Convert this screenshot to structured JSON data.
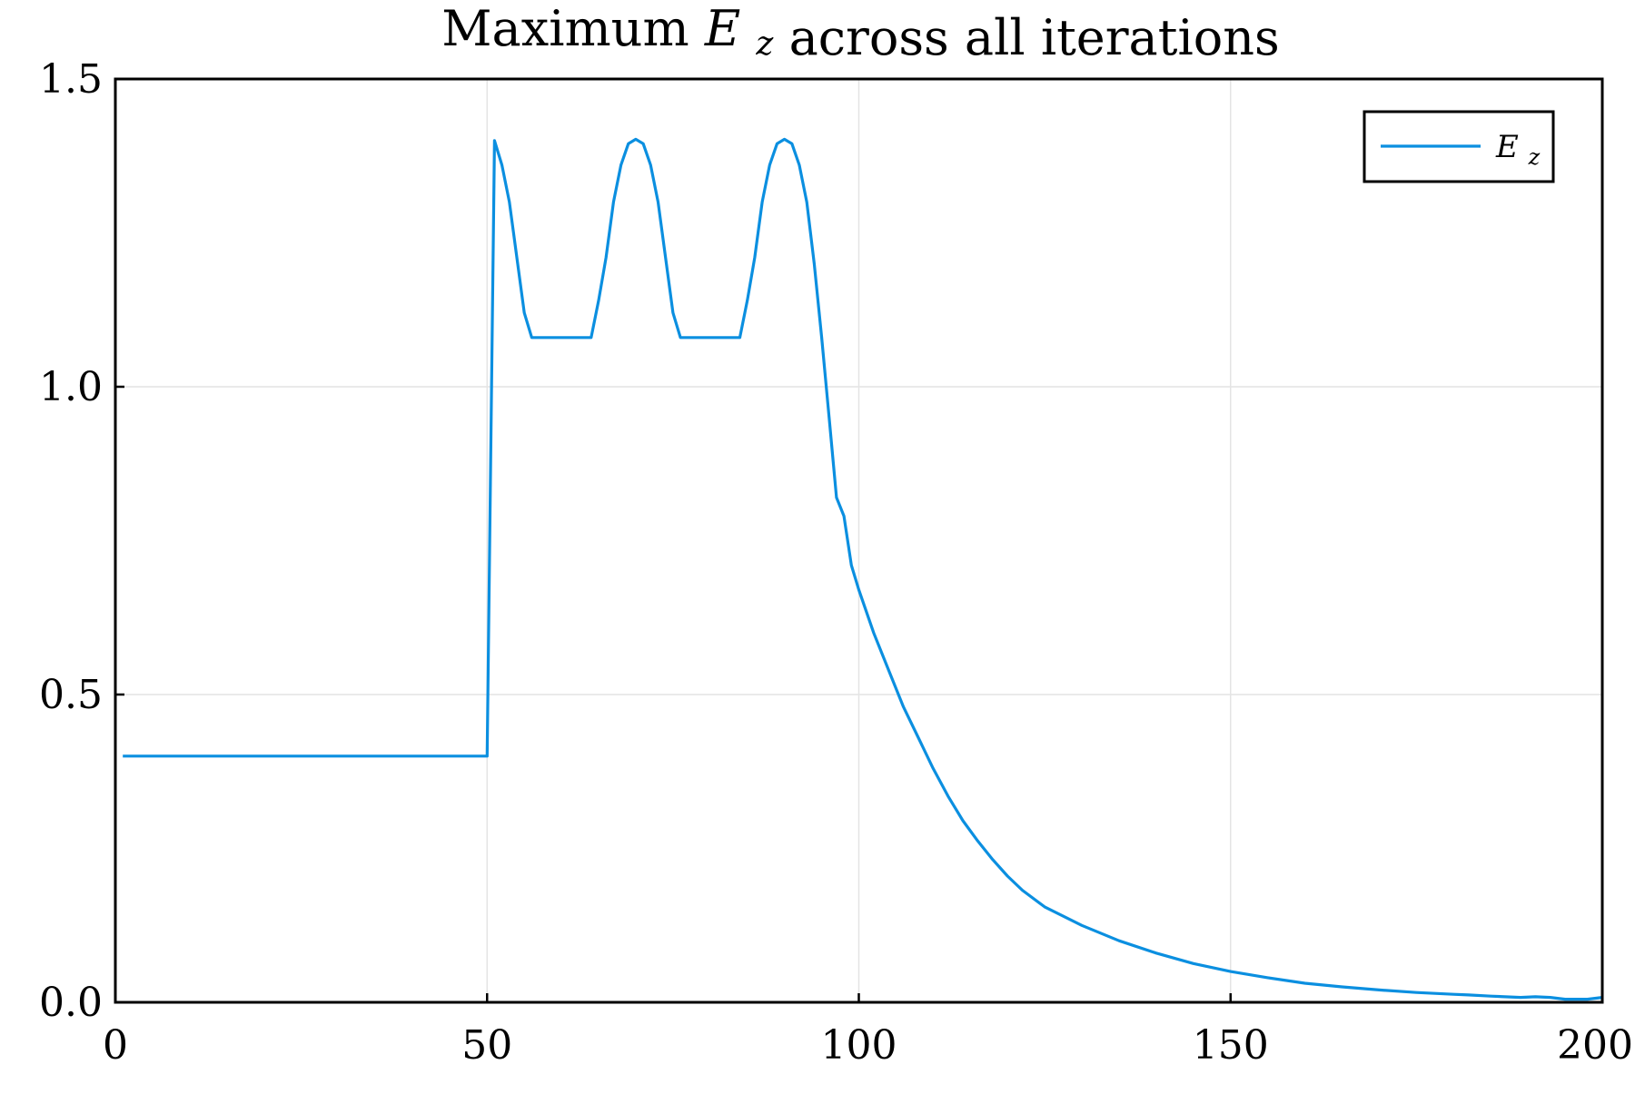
{
  "chart_data": {
    "type": "line",
    "title": "Maximum E_z across all iterations",
    "title_parts": {
      "prefix": "Maximum",
      "symbol": "E",
      "subscript": "z",
      "suffix": "across all iterations"
    },
    "xlabel": "",
    "ylabel": "",
    "xlim": [
      0,
      200
    ],
    "ylim": [
      0,
      1.5
    ],
    "xticks": [
      0,
      50,
      100,
      150,
      200
    ],
    "xtick_labels": [
      "0",
      "50",
      "100",
      "150",
      "200"
    ],
    "yticks": [
      0,
      0.5,
      1.0,
      1.5
    ],
    "ytick_labels": [
      "0.0",
      "0.5",
      "1.0",
      "1.5"
    ],
    "grid": true,
    "legend_position": "top-right",
    "legend": {
      "symbol": "E",
      "subscript": "z"
    },
    "series": [
      {
        "name": "E_z",
        "color": "#0b8fe0",
        "x": [
          1,
          50,
          51,
          52,
          53,
          54,
          55,
          56,
          57,
          60,
          64,
          65,
          66,
          67,
          68,
          69,
          70,
          71,
          72,
          73,
          74,
          75,
          76,
          80,
          84,
          85,
          86,
          87,
          88,
          89,
          90,
          91,
          92,
          93,
          94,
          95,
          96,
          97,
          98,
          99,
          100,
          102,
          104,
          106,
          108,
          110,
          112,
          114,
          116,
          118,
          120,
          122,
          125,
          130,
          135,
          140,
          145,
          150,
          155,
          160,
          165,
          170,
          175,
          180,
          182,
          185,
          189,
          191,
          193,
          195,
          198,
          200
        ],
        "y": [
          0.4,
          0.4,
          1.4,
          1.36,
          1.3,
          1.21,
          1.12,
          1.08,
          1.08,
          1.08,
          1.08,
          1.14,
          1.21,
          1.3,
          1.36,
          1.395,
          1.402,
          1.395,
          1.36,
          1.3,
          1.21,
          1.12,
          1.08,
          1.08,
          1.08,
          1.14,
          1.21,
          1.3,
          1.36,
          1.395,
          1.402,
          1.395,
          1.36,
          1.3,
          1.2,
          1.08,
          0.95,
          0.82,
          0.79,
          0.71,
          0.67,
          0.6,
          0.54,
          0.48,
          0.43,
          0.38,
          0.335,
          0.295,
          0.262,
          0.232,
          0.205,
          0.182,
          0.155,
          0.125,
          0.1,
          0.08,
          0.063,
          0.05,
          0.04,
          0.031,
          0.025,
          0.02,
          0.016,
          0.013,
          0.012,
          0.01,
          0.008,
          0.009,
          0.008,
          0.005,
          0.005,
          0.008
        ]
      }
    ]
  }
}
